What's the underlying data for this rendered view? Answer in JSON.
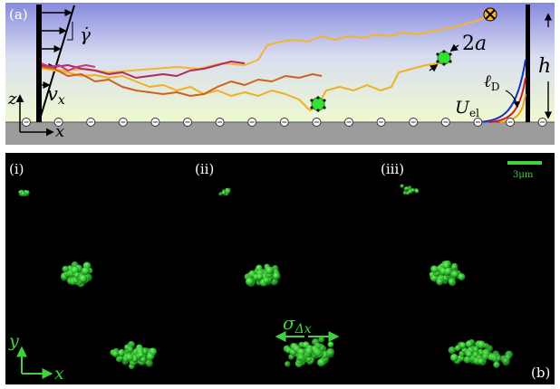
{
  "panel_a": {
    "label": "(a)",
    "shear_rate": "γ̇",
    "particle_size_main": "2",
    "particle_size_var": "a",
    "height_label": "h",
    "velocity_label_main": "v",
    "velocity_label_sub": "x",
    "axis_z": "z",
    "axis_x": "x",
    "debye_main": "ℓ",
    "debye_sub": "D",
    "potential_main": "U",
    "potential_sub": "el",
    "charge_symbol": "⊖",
    "colors": {
      "sky_top": "#8d8fe0",
      "sky_bottom": "#eef9cf",
      "wall": "#9a9a9a",
      "particle": "#35e035",
      "trajectory_1": "#f5b52a",
      "trajectory_2": "#d4661a",
      "trajectory_3": "#b03060",
      "trajectory_4": "#c23a7a",
      "potential_blue": "#1a2bc9",
      "potential_red": "#d41a1a",
      "potential_yellow": "#f0a800"
    }
  },
  "panel_b": {
    "label": "(b)",
    "sub_i": "(i)",
    "sub_ii": "(ii)",
    "sub_iii": "(iii)",
    "scale_bar": "3μm",
    "spread_main": "σ",
    "spread_sub": "Δx",
    "axis_y": "y",
    "axis_x": "x",
    "colors": {
      "background": "#000000",
      "accent": "#3fd13f"
    }
  }
}
